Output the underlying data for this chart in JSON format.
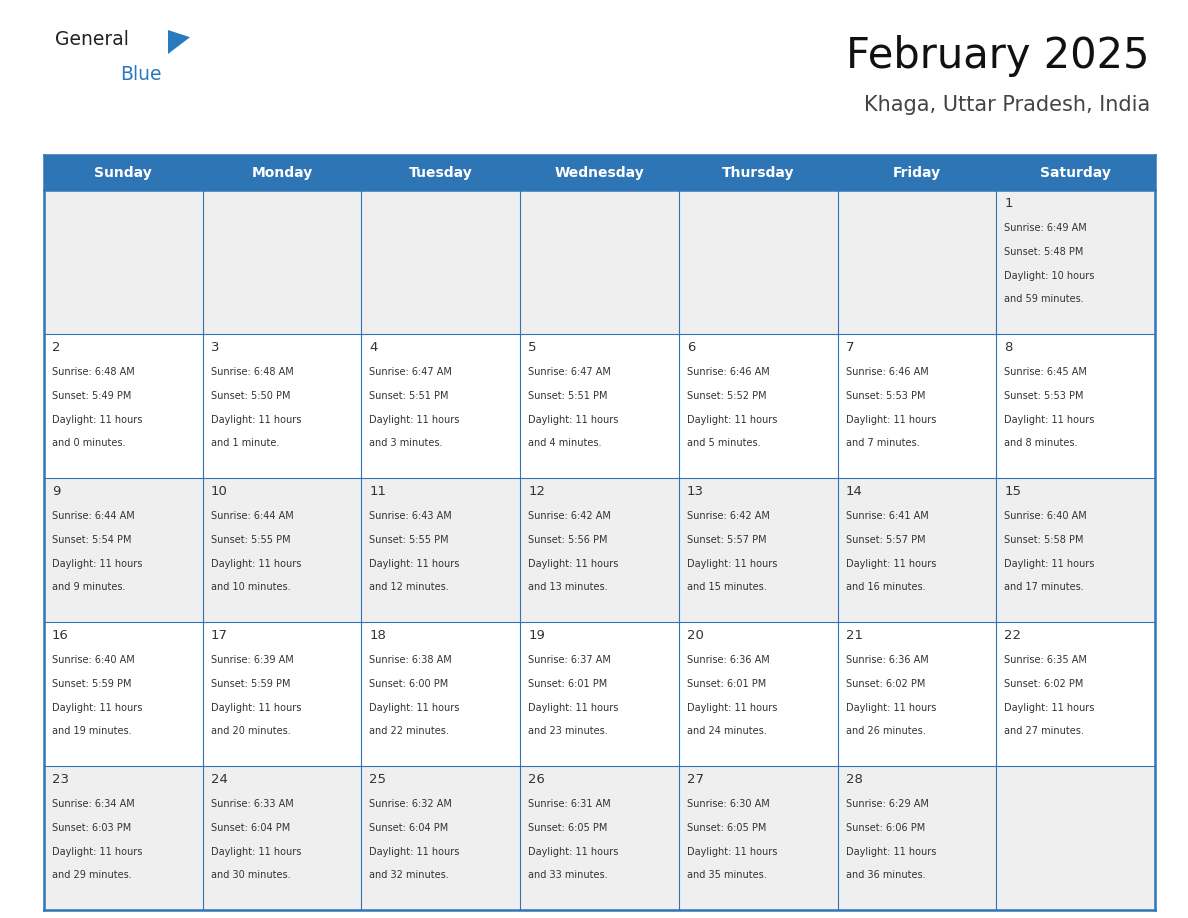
{
  "title": "February 2025",
  "subtitle": "Khaga, Uttar Pradesh, India",
  "header_bg": "#2E75B6",
  "header_text_color": "#FFFFFF",
  "cell_bg_odd": "#EFEFEF",
  "cell_bg_even": "#FFFFFF",
  "cell_text_color": "#333333",
  "day_num_color": "#333333",
  "grid_line_color": "#2E75B6",
  "days_of_week": [
    "Sunday",
    "Monday",
    "Tuesday",
    "Wednesday",
    "Thursday",
    "Friday",
    "Saturday"
  ],
  "logo_general_color": "#222222",
  "logo_blue_color": "#2979BE",
  "calendar_data": [
    [
      null,
      null,
      null,
      null,
      null,
      null,
      {
        "day": 1,
        "sunrise": "6:49 AM",
        "sunset": "5:48 PM",
        "daylight": "10 hours",
        "daylight2": "and 59 minutes."
      }
    ],
    [
      {
        "day": 2,
        "sunrise": "6:48 AM",
        "sunset": "5:49 PM",
        "daylight": "11 hours",
        "daylight2": "and 0 minutes."
      },
      {
        "day": 3,
        "sunrise": "6:48 AM",
        "sunset": "5:50 PM",
        "daylight": "11 hours",
        "daylight2": "and 1 minute."
      },
      {
        "day": 4,
        "sunrise": "6:47 AM",
        "sunset": "5:51 PM",
        "daylight": "11 hours",
        "daylight2": "and 3 minutes."
      },
      {
        "day": 5,
        "sunrise": "6:47 AM",
        "sunset": "5:51 PM",
        "daylight": "11 hours",
        "daylight2": "and 4 minutes."
      },
      {
        "day": 6,
        "sunrise": "6:46 AM",
        "sunset": "5:52 PM",
        "daylight": "11 hours",
        "daylight2": "and 5 minutes."
      },
      {
        "day": 7,
        "sunrise": "6:46 AM",
        "sunset": "5:53 PM",
        "daylight": "11 hours",
        "daylight2": "and 7 minutes."
      },
      {
        "day": 8,
        "sunrise": "6:45 AM",
        "sunset": "5:53 PM",
        "daylight": "11 hours",
        "daylight2": "and 8 minutes."
      }
    ],
    [
      {
        "day": 9,
        "sunrise": "6:44 AM",
        "sunset": "5:54 PM",
        "daylight": "11 hours",
        "daylight2": "and 9 minutes."
      },
      {
        "day": 10,
        "sunrise": "6:44 AM",
        "sunset": "5:55 PM",
        "daylight": "11 hours",
        "daylight2": "and 10 minutes."
      },
      {
        "day": 11,
        "sunrise": "6:43 AM",
        "sunset": "5:55 PM",
        "daylight": "11 hours",
        "daylight2": "and 12 minutes."
      },
      {
        "day": 12,
        "sunrise": "6:42 AM",
        "sunset": "5:56 PM",
        "daylight": "11 hours",
        "daylight2": "and 13 minutes."
      },
      {
        "day": 13,
        "sunrise": "6:42 AM",
        "sunset": "5:57 PM",
        "daylight": "11 hours",
        "daylight2": "and 15 minutes."
      },
      {
        "day": 14,
        "sunrise": "6:41 AM",
        "sunset": "5:57 PM",
        "daylight": "11 hours",
        "daylight2": "and 16 minutes."
      },
      {
        "day": 15,
        "sunrise": "6:40 AM",
        "sunset": "5:58 PM",
        "daylight": "11 hours",
        "daylight2": "and 17 minutes."
      }
    ],
    [
      {
        "day": 16,
        "sunrise": "6:40 AM",
        "sunset": "5:59 PM",
        "daylight": "11 hours",
        "daylight2": "and 19 minutes."
      },
      {
        "day": 17,
        "sunrise": "6:39 AM",
        "sunset": "5:59 PM",
        "daylight": "11 hours",
        "daylight2": "and 20 minutes."
      },
      {
        "day": 18,
        "sunrise": "6:38 AM",
        "sunset": "6:00 PM",
        "daylight": "11 hours",
        "daylight2": "and 22 minutes."
      },
      {
        "day": 19,
        "sunrise": "6:37 AM",
        "sunset": "6:01 PM",
        "daylight": "11 hours",
        "daylight2": "and 23 minutes."
      },
      {
        "day": 20,
        "sunrise": "6:36 AM",
        "sunset": "6:01 PM",
        "daylight": "11 hours",
        "daylight2": "and 24 minutes."
      },
      {
        "day": 21,
        "sunrise": "6:36 AM",
        "sunset": "6:02 PM",
        "daylight": "11 hours",
        "daylight2": "and 26 minutes."
      },
      {
        "day": 22,
        "sunrise": "6:35 AM",
        "sunset": "6:02 PM",
        "daylight": "11 hours",
        "daylight2": "and 27 minutes."
      }
    ],
    [
      {
        "day": 23,
        "sunrise": "6:34 AM",
        "sunset": "6:03 PM",
        "daylight": "11 hours",
        "daylight2": "and 29 minutes."
      },
      {
        "day": 24,
        "sunrise": "6:33 AM",
        "sunset": "6:04 PM",
        "daylight": "11 hours",
        "daylight2": "and 30 minutes."
      },
      {
        "day": 25,
        "sunrise": "6:32 AM",
        "sunset": "6:04 PM",
        "daylight": "11 hours",
        "daylight2": "and 32 minutes."
      },
      {
        "day": 26,
        "sunrise": "6:31 AM",
        "sunset": "6:05 PM",
        "daylight": "11 hours",
        "daylight2": "and 33 minutes."
      },
      {
        "day": 27,
        "sunrise": "6:30 AM",
        "sunset": "6:05 PM",
        "daylight": "11 hours",
        "daylight2": "and 35 minutes."
      },
      {
        "day": 28,
        "sunrise": "6:29 AM",
        "sunset": "6:06 PM",
        "daylight": "11 hours",
        "daylight2": "and 36 minutes."
      },
      null
    ]
  ]
}
